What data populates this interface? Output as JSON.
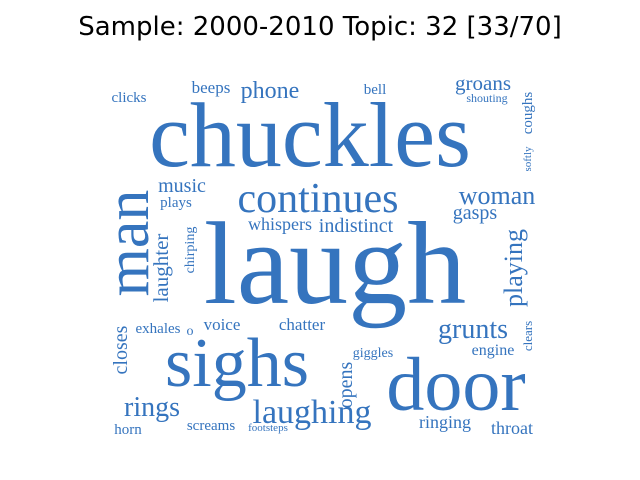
{
  "title": "Sample: 2000-2010 Topic: 32 [33/70]",
  "word_color": "#3574be",
  "words": [
    {
      "text": "laugh"
    },
    {
      "text": "chuckles"
    },
    {
      "text": "door"
    },
    {
      "text": "sighs"
    },
    {
      "text": "man"
    },
    {
      "text": "continues"
    },
    {
      "text": "laughing"
    },
    {
      "text": "woman"
    },
    {
      "text": "grunts"
    },
    {
      "text": "rings"
    },
    {
      "text": "music"
    },
    {
      "text": "phone"
    },
    {
      "text": "gasps"
    },
    {
      "text": "playing"
    },
    {
      "text": "laughter"
    },
    {
      "text": "opens"
    },
    {
      "text": "closes"
    },
    {
      "text": "groans"
    },
    {
      "text": "ringing"
    },
    {
      "text": "throat"
    },
    {
      "text": "indistinct"
    },
    {
      "text": "whispers"
    },
    {
      "text": "chatter"
    },
    {
      "text": "voice"
    },
    {
      "text": "exhales"
    },
    {
      "text": "engine"
    },
    {
      "text": "beeps"
    },
    {
      "text": "coughs"
    },
    {
      "text": "clicks"
    },
    {
      "text": "plays"
    },
    {
      "text": "screams"
    },
    {
      "text": "giggles"
    },
    {
      "text": "horn"
    },
    {
      "text": "bell"
    },
    {
      "text": "chirping"
    },
    {
      "text": "clears"
    },
    {
      "text": "shouting"
    },
    {
      "text": "softly"
    },
    {
      "text": "footsteps"
    },
    {
      "text": "o"
    }
  ]
}
